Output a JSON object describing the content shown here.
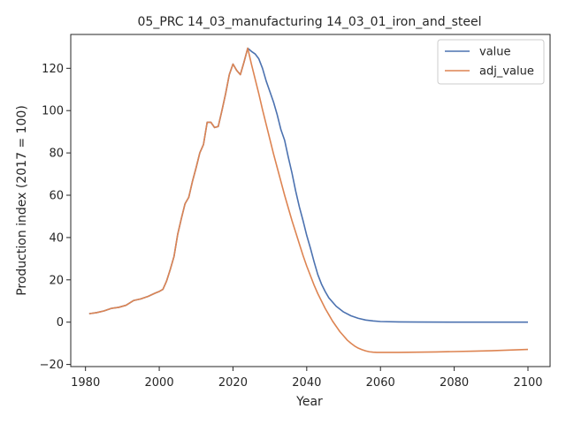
{
  "chart_data": {
    "type": "line",
    "title": "05_PRC 14_03_manufacturing 14_03_01_iron_and_steel",
    "xlabel": "Year",
    "ylabel": "Production index (2017 = 100)",
    "xlim": [
      1976,
      2106
    ],
    "ylim": [
      -21,
      136
    ],
    "xticks": [
      1980,
      2000,
      2020,
      2040,
      2060,
      2080,
      2100
    ],
    "yticks": [
      -20,
      0,
      20,
      40,
      60,
      80,
      100,
      120
    ],
    "grid": false,
    "legend_position": "top-right",
    "series": [
      {
        "name": "value",
        "color": "#4c72b0",
        "x": [
          1981,
          1983,
          1985,
          1987,
          1989,
          1991,
          1993,
          1995,
          1997,
          1999,
          2000,
          2001,
          2002,
          2003,
          2004,
          2005,
          2006,
          2007,
          2008,
          2009,
          2010,
          2011,
          2012,
          2013,
          2014,
          2015,
          2016,
          2017,
          2018,
          2019,
          2020,
          2021,
          2022,
          2023,
          2024,
          2025,
          2026,
          2027,
          2028,
          2029,
          2030,
          2031,
          2032,
          2033,
          2034,
          2035,
          2036,
          2037,
          2038,
          2039,
          2040,
          2041,
          2042,
          2043,
          2044,
          2045,
          2046,
          2048,
          2050,
          2052,
          2054,
          2056,
          2058,
          2060,
          2065,
          2070,
          2080,
          2090,
          2100
        ],
        "y": [
          4,
          4.5,
          5.3,
          6.5,
          7,
          8,
          10.2,
          11,
          12.2,
          13.8,
          14.5,
          15.5,
          19.5,
          25,
          31,
          41.5,
          49,
          56,
          59,
          66.5,
          73,
          80,
          84,
          94.5,
          94.5,
          92,
          92.5,
          100,
          108,
          117,
          122,
          119,
          117,
          123,
          129.5,
          128,
          126.8,
          124.5,
          120,
          114,
          109,
          104,
          98,
          91,
          86,
          78,
          70.5,
          62,
          54.5,
          48,
          41,
          35,
          28.5,
          22.5,
          18,
          14.5,
          11.5,
          7.5,
          4.8,
          3,
          1.8,
          1,
          0.6,
          0.3,
          0.1,
          0.05,
          0,
          0,
          0
        ]
      },
      {
        "name": "adj_value",
        "color": "#dd8452",
        "x": [
          1981,
          1983,
          1985,
          1987,
          1989,
          1991,
          1993,
          1995,
          1997,
          1999,
          2000,
          2001,
          2002,
          2003,
          2004,
          2005,
          2006,
          2007,
          2008,
          2009,
          2010,
          2011,
          2012,
          2013,
          2014,
          2015,
          2016,
          2017,
          2018,
          2019,
          2020,
          2021,
          2022,
          2023,
          2024,
          2025,
          2026,
          2027,
          2028,
          2029,
          2030,
          2031,
          2032,
          2033,
          2034,
          2035,
          2036,
          2037,
          2038,
          2039,
          2040,
          2041,
          2042,
          2043,
          2044,
          2045,
          2046,
          2047,
          2048,
          2049,
          2050,
          2051,
          2052,
          2053,
          2054,
          2055,
          2056,
          2057,
          2058,
          2059,
          2060,
          2061,
          2062,
          2065,
          2070,
          2075,
          2080,
          2085,
          2090,
          2095,
          2100
        ],
        "y": [
          4,
          4.5,
          5.3,
          6.5,
          7,
          8,
          10.2,
          11,
          12.2,
          13.8,
          14.5,
          15.5,
          19.5,
          25,
          31,
          41.5,
          49,
          56,
          59,
          66.5,
          73,
          80,
          84,
          94.5,
          94.5,
          92,
          92.5,
          100,
          108,
          117,
          122,
          119,
          117,
          123,
          129.5,
          122,
          115,
          108,
          100.5,
          93.5,
          86.5,
          79.5,
          73,
          66.5,
          60,
          54,
          48,
          42.5,
          37,
          31.5,
          26.5,
          22,
          17.5,
          13.5,
          10,
          6.5,
          3.5,
          0.5,
          -2,
          -4.5,
          -6.5,
          -8.5,
          -10,
          -11.3,
          -12.3,
          -13,
          -13.6,
          -14,
          -14.2,
          -14.3,
          -14.3,
          -14.3,
          -14.3,
          -14.3,
          -14.2,
          -14.1,
          -13.9,
          -13.7,
          -13.5,
          -13.2,
          -12.9
        ]
      }
    ]
  }
}
